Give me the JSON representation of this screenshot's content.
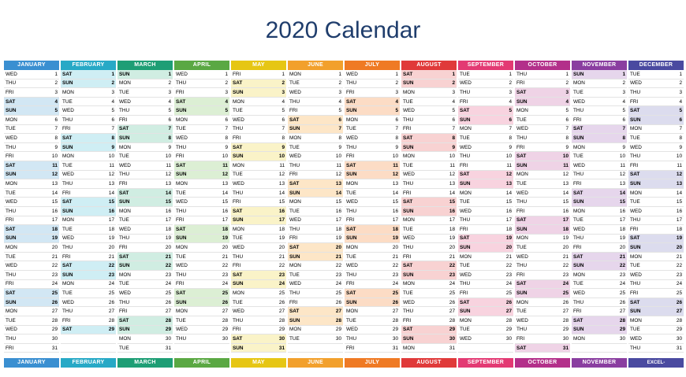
{
  "title": "2020 Calendar",
  "footer_brand": "EXCEL-PRATIQUE.COM",
  "months": [
    {
      "name": "JANUARY",
      "color": "#3a8fd1",
      "tint": "#d2e7f4",
      "start": 3,
      "days": 31
    },
    {
      "name": "FEBRUARY",
      "color": "#27a9c6",
      "tint": "#cfeef4",
      "start": 6,
      "days": 29
    },
    {
      "name": "MARCH",
      "color": "#1e9e75",
      "tint": "#d0ede2",
      "start": 0,
      "days": 31
    },
    {
      "name": "APRIL",
      "color": "#5aa843",
      "tint": "#dcefd4",
      "start": 3,
      "days": 30
    },
    {
      "name": "MAY",
      "color": "#e6c614",
      "tint": "#faf3c8",
      "start": 5,
      "days": 31
    },
    {
      "name": "JUNE",
      "color": "#f2a02c",
      "tint": "#fde6c7",
      "start": 1,
      "days": 30
    },
    {
      "name": "JULY",
      "color": "#ef7a24",
      "tint": "#fcdcc5",
      "start": 3,
      "days": 31
    },
    {
      "name": "AUGUST",
      "color": "#e03a3a",
      "tint": "#f8d2d2",
      "start": 6,
      "days": 31
    },
    {
      "name": "SEPTEMBER",
      "color": "#e33a73",
      "tint": "#f8d3df",
      "start": 2,
      "days": 30
    },
    {
      "name": "OCTOBER",
      "color": "#b3308a",
      "tint": "#efd3e6",
      "start": 4,
      "days": 31
    },
    {
      "name": "NOVEMBER",
      "color": "#8a3ea0",
      "tint": "#e6d6ec",
      "start": 0,
      "days": 30
    },
    {
      "name": "DECEMBER",
      "color": "#4a4aa0",
      "tint": "#dcdcee",
      "start": 2,
      "days": 31
    }
  ],
  "weekdays": [
    "SUN",
    "MON",
    "TUE",
    "WED",
    "THU",
    "FRI",
    "SAT"
  ]
}
